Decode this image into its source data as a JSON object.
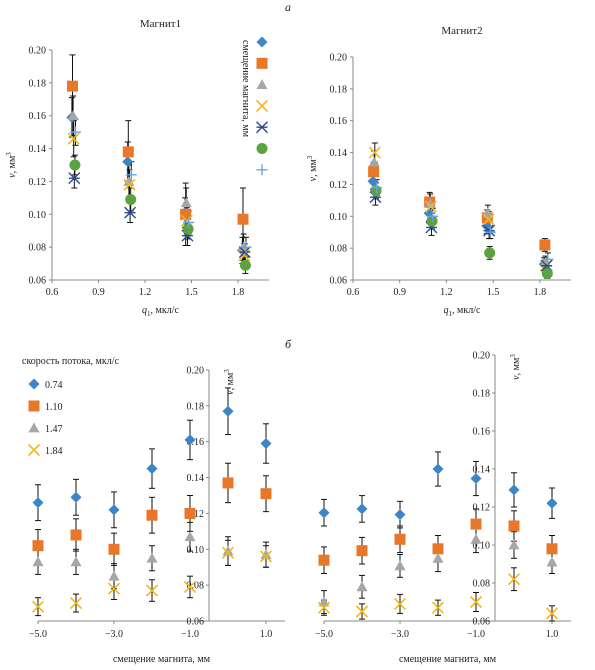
{
  "panel_labels": {
    "top": "а",
    "bottom": "б"
  },
  "legend_top_title": "смещение магнита, мм",
  "legend_bottom_title": "скорость потока, мкл/с",
  "colors": {
    "blue": "#3d86c6",
    "orange": "#e8772a",
    "gray": "#a6a6a6",
    "yellow": "#f2b81d",
    "navy": "#2b4b8c",
    "green": "#5ba33e",
    "lightblue": "#6aa4e0",
    "error": "#111111"
  },
  "chart_data": [
    {
      "type": "scatter",
      "title": "Магнит1",
      "xlabel": "q1, мкл/с",
      "ylabel": "v, мм3",
      "xlim": [
        0.6,
        2.0
      ],
      "ylim": [
        0.06,
        0.2
      ],
      "xticks": [
        "0.6",
        "0.9",
        "1.2",
        "1.5",
        "1.8"
      ],
      "yticks": [
        "0.06",
        "0.08",
        "0.10",
        "0.12",
        "0.14",
        "0.16",
        "0.18",
        "0.20"
      ],
      "legend_position": "top-right",
      "x": [
        0.74,
        1.1,
        1.47,
        1.84
      ],
      "series": [
        {
          "marker": "diamond",
          "color": "blue",
          "values": [
            0.159,
            0.132,
            0.101,
            0.078
          ],
          "err": [
            0.012,
            0.012,
            0.009,
            0.008
          ]
        },
        {
          "marker": "square",
          "color": "orange",
          "values": [
            0.178,
            0.138,
            0.1,
            0.097
          ],
          "err": [
            0.019,
            0.019,
            0.019,
            0.019
          ]
        },
        {
          "marker": "triangle",
          "color": "gray",
          "values": [
            0.16,
            0.12,
            0.107,
            0.08
          ],
          "err": [
            0.012,
            0.01,
            0.009,
            0.008
          ]
        },
        {
          "marker": "x",
          "color": "yellow",
          "values": [
            0.146,
            0.118,
            0.096,
            0.075
          ],
          "err": [
            0.011,
            0.009,
            0.008,
            0.007
          ]
        },
        {
          "marker": "star",
          "color": "navy",
          "values": [
            0.122,
            0.101,
            0.087,
            0.077
          ],
          "err": [
            0.006,
            0.006,
            0.006,
            0.005
          ]
        },
        {
          "marker": "circle",
          "color": "green",
          "values": [
            0.13,
            0.109,
            0.091,
            0.069
          ],
          "err": [
            0.006,
            0.007,
            0.006,
            0.005
          ]
        },
        {
          "marker": "plus",
          "color": "lightblue",
          "values": [
            0.15,
            0.124,
            0.095,
            0.08
          ],
          "err": [
            0.008,
            0.008,
            0.007,
            0.006
          ]
        }
      ]
    },
    {
      "type": "scatter",
      "title": "Магнит2",
      "xlabel": "q1, мкл/с",
      "ylabel": "v, мм3",
      "xlim": [
        0.6,
        2.0
      ],
      "ylim": [
        0.06,
        0.2
      ],
      "xticks": [
        "0.6",
        "0.9",
        "1.2",
        "1.5",
        "1.8"
      ],
      "yticks": [
        "0.06",
        "0.08",
        "0.10",
        "0.12",
        "0.14",
        "0.16",
        "0.18",
        "0.20"
      ],
      "x": [
        0.74,
        1.1,
        1.47,
        1.84
      ],
      "series": [
        {
          "marker": "diamond",
          "color": "blue",
          "values": [
            0.122,
            0.102,
            0.094,
            0.07
          ],
          "err": [
            0.005,
            0.005,
            0.005,
            0.004
          ]
        },
        {
          "marker": "square",
          "color": "orange",
          "values": [
            0.128,
            0.109,
            0.099,
            0.082
          ],
          "err": [
            0.006,
            0.006,
            0.005,
            0.004
          ]
        },
        {
          "marker": "triangle",
          "color": "gray",
          "values": [
            0.134,
            0.108,
            0.102,
            0.071
          ],
          "err": [
            0.007,
            0.006,
            0.005,
            0.004
          ]
        },
        {
          "marker": "x",
          "color": "yellow",
          "values": [
            0.14,
            0.106,
            0.098,
            0.069
          ],
          "err": [
            0.006,
            0.006,
            0.005,
            0.004
          ]
        },
        {
          "marker": "star",
          "color": "navy",
          "values": [
            0.112,
            0.093,
            0.091,
            0.069
          ],
          "err": [
            0.005,
            0.005,
            0.005,
            0.004
          ]
        },
        {
          "marker": "circle",
          "color": "green",
          "values": [
            0.116,
            0.097,
            0.077,
            0.064
          ],
          "err": [
            0.005,
            0.005,
            0.004,
            0.003
          ]
        },
        {
          "marker": "plus",
          "color": "lightblue",
          "values": [
            0.118,
            0.1,
            0.09,
            0.073
          ],
          "err": [
            0.005,
            0.005,
            0.004,
            0.004
          ]
        }
      ]
    },
    {
      "type": "scatter",
      "title": "",
      "xlabel": "смещение магнита, мм",
      "ylabel": "v, мм3",
      "xlim": [
        -5.0,
        1.5
      ],
      "ylim": [
        0.06,
        0.2
      ],
      "xticks": [
        "−5.0",
        "−3.0",
        "−1.0",
        "1.0"
      ],
      "yticks": [
        "0.06",
        "0.08",
        "0.10",
        "0.12",
        "0.14",
        "0.16",
        "0.18",
        "0.20"
      ],
      "legend_position": "top-left",
      "x": [
        -5,
        -4,
        -3,
        -2,
        -1,
        0,
        1
      ],
      "series": [
        {
          "name": "0.74",
          "marker": "diamond",
          "color": "blue",
          "values": [
            0.126,
            0.129,
            0.122,
            0.145,
            0.161,
            0.177,
            0.159
          ],
          "err": [
            0.01,
            0.01,
            0.01,
            0.011,
            0.011,
            0.013,
            0.011
          ]
        },
        {
          "name": "1.10",
          "marker": "square",
          "color": "orange",
          "values": [
            0.102,
            0.108,
            0.1,
            0.119,
            0.12,
            0.137,
            0.131
          ],
          "err": [
            0.009,
            0.009,
            0.009,
            0.01,
            0.01,
            0.011,
            0.01
          ]
        },
        {
          "name": "1.47",
          "marker": "triangle",
          "color": "gray",
          "values": [
            0.093,
            0.093,
            0.085,
            0.095,
            0.107,
            0.099,
            0.097
          ],
          "err": [
            0.007,
            0.007,
            0.007,
            0.007,
            0.008,
            0.008,
            0.007
          ]
        },
        {
          "name": "1.84",
          "marker": "x",
          "color": "yellow",
          "values": [
            0.068,
            0.07,
            0.078,
            0.077,
            0.079,
            0.098,
            0.096
          ],
          "err": [
            0.005,
            0.005,
            0.006,
            0.006,
            0.006,
            0.007,
            0.006
          ]
        }
      ]
    },
    {
      "type": "scatter",
      "title": "",
      "xlabel": "смещение магнита, мм",
      "ylabel": "v, мм3",
      "xlim": [
        -5.0,
        1.5
      ],
      "ylim": [
        0.06,
        0.2
      ],
      "xticks": [
        "−5.0",
        "−3.0",
        "−1.0",
        "1.0"
      ],
      "yticks": [
        "0.06",
        "0.08",
        "0.10",
        "0.12",
        "0.14",
        "0.16",
        "0.18",
        "0.20"
      ],
      "x": [
        -5,
        -4,
        -3,
        -2,
        -1,
        0,
        1
      ],
      "series": [
        {
          "marker": "diamond",
          "color": "blue",
          "values": [
            0.117,
            0.119,
            0.116,
            0.14,
            0.135,
            0.129,
            0.122
          ],
          "err": [
            0.007,
            0.007,
            0.007,
            0.009,
            0.009,
            0.009,
            0.008
          ]
        },
        {
          "marker": "square",
          "color": "orange",
          "values": [
            0.092,
            0.097,
            0.103,
            0.098,
            0.111,
            0.11,
            0.098
          ],
          "err": [
            0.007,
            0.007,
            0.007,
            0.007,
            0.008,
            0.008,
            0.007
          ]
        },
        {
          "marker": "triangle",
          "color": "gray",
          "values": [
            0.07,
            0.078,
            0.089,
            0.093,
            0.103,
            0.1,
            0.091
          ],
          "err": [
            0.006,
            0.006,
            0.006,
            0.007,
            0.007,
            0.007,
            0.006
          ]
        },
        {
          "marker": "x",
          "color": "yellow",
          "values": [
            0.067,
            0.065,
            0.069,
            0.067,
            0.07,
            0.082,
            0.064
          ],
          "err": [
            0.004,
            0.004,
            0.005,
            0.004,
            0.005,
            0.006,
            0.004
          ]
        }
      ]
    }
  ]
}
